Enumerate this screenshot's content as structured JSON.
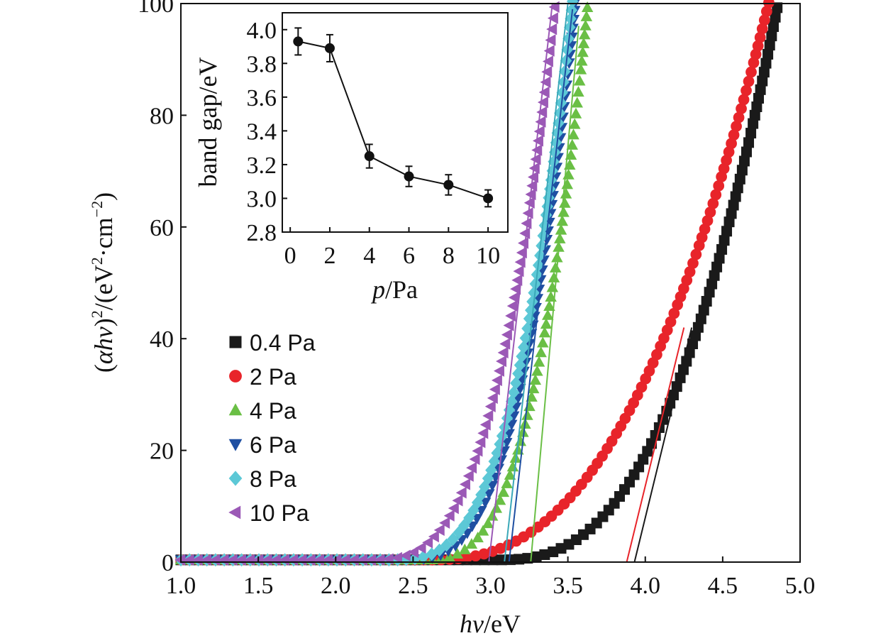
{
  "chart_data": [
    {
      "type": "scatter",
      "title": "",
      "xlabel": {
        "italic": "hv",
        "rest": "/eV"
      },
      "ylabel": {
        "pre": "(",
        "italic": "αhv",
        "mid": ")",
        "sup1": "2",
        "mid2": "/(eV",
        "sup2": "2",
        "mid3": "·cm",
        "sup3": "−2",
        "post": ")"
      },
      "xlim": [
        1.0,
        5.0
      ],
      "ylim": [
        0,
        100
      ],
      "x_ticks": [
        "1.0",
        "1.5",
        "2.0",
        "2.5",
        "3.0",
        "3.5",
        "4.0",
        "4.5",
        "5.0"
      ],
      "y_ticks": [
        "0",
        "20",
        "40",
        "60",
        "80",
        "100"
      ],
      "legend_position": "left-center",
      "series": [
        {
          "name": "0.4 Pa",
          "color": "#1a1a1a",
          "marker": "square",
          "onset": 3.05,
          "x_end": 4.86,
          "shape": 2.6,
          "fit": [
            [
              3.93,
              0
            ],
            [
              4.3,
              42
            ]
          ]
        },
        {
          "name": "2 Pa",
          "color": "#e8242a",
          "marker": "circle",
          "onset": 2.6,
          "x_end": 4.8,
          "shape": 2.5,
          "fit": [
            [
              3.88,
              0
            ],
            [
              4.25,
              42
            ]
          ]
        },
        {
          "name": "4 Pa",
          "color": "#6abf45",
          "marker": "triangle-up",
          "onset": 2.55,
          "x_end": 3.63,
          "shape": 3.0,
          "fit": [
            [
              3.26,
              0
            ],
            [
              3.57,
              96
            ]
          ]
        },
        {
          "name": "6 Pa",
          "color": "#1f4fa2",
          "marker": "triangle-down",
          "onset": 2.45,
          "x_end": 3.55,
          "shape": 3.0,
          "fit": [
            [
              3.12,
              0
            ],
            [
              3.53,
              99
            ]
          ]
        },
        {
          "name": "8 Pa",
          "color": "#5cc8d6",
          "marker": "diamond",
          "onset": 2.35,
          "x_end": 3.53,
          "shape": 3.1,
          "fit": [
            [
              3.09,
              0
            ],
            [
              3.5,
              100
            ]
          ]
        },
        {
          "name": "10 Pa",
          "color": "#9b59b6",
          "marker": "triangle-left",
          "onset": 2.2,
          "x_end": 3.42,
          "shape": 3.1,
          "fit": [
            [
              2.99,
              0
            ],
            [
              3.4,
              100
            ]
          ]
        }
      ]
    },
    {
      "type": "line",
      "title": "",
      "xlabel": {
        "italic": "p",
        "rest": "/Pa"
      },
      "ylabel": "band gap/eV",
      "xlim": [
        -0.4,
        11
      ],
      "ylim": [
        2.8,
        4.1
      ],
      "x_ticks": [
        "0",
        "2",
        "4",
        "6",
        "8",
        "10"
      ],
      "y_ticks": [
        "2.8",
        "3.0",
        "3.2",
        "3.4",
        "3.6",
        "3.8",
        "4.0"
      ],
      "x": [
        0.4,
        2,
        4,
        6,
        8,
        10
      ],
      "values": [
        3.93,
        3.89,
        3.25,
        3.13,
        3.08,
        3.0
      ],
      "error": [
        0.08,
        0.08,
        0.07,
        0.06,
        0.06,
        0.05
      ]
    }
  ]
}
